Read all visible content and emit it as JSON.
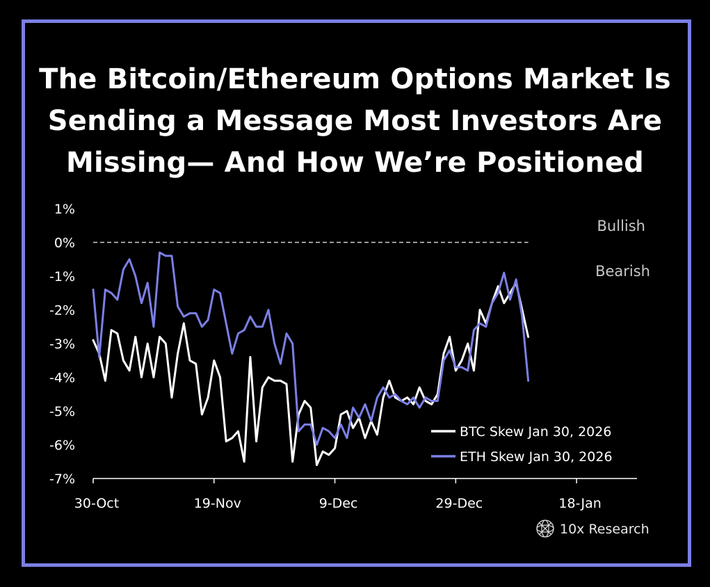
{
  "title": {
    "lines": [
      "The Bitcoin/Ethereum Options Market Is",
      "Sending a Message Most Investors Are",
      "Missing— And How We’re Positioned"
    ]
  },
  "colors": {
    "frame": "#7B7FE4",
    "btc": "#FFFFFF",
    "eth": "#7B7FE4",
    "background": "#000000"
  },
  "chart_data": {
    "type": "line",
    "title": "",
    "xlabel": "",
    "ylabel": "",
    "ylim": [
      -7,
      1
    ],
    "yticks": [
      1,
      0,
      -1,
      -2,
      -3,
      -4,
      -5,
      -6,
      -7
    ],
    "ytick_labels": [
      "1%",
      "0%",
      "-1%",
      "-2%",
      "-3%",
      "-4%",
      "-5%",
      "-6%",
      "-7%"
    ],
    "xlim": [
      0,
      90
    ],
    "xticks": [
      0,
      20,
      40,
      60,
      80
    ],
    "xtick_labels": [
      "30-Oct",
      "19-Nov",
      "9-Dec",
      "29-Dec",
      "18-Jan"
    ],
    "reference_line": {
      "y": 0,
      "style": "dashed",
      "x_end": 72
    },
    "zone_labels": {
      "above": "Bullish",
      "below": "Bearish"
    },
    "legend": "bottom-right",
    "series": [
      {
        "name": "BTC Skew Jan 30, 2026",
        "x": [
          0,
          1,
          2,
          3,
          4,
          5,
          6,
          7,
          8,
          9,
          10,
          11,
          12,
          13,
          14,
          15,
          16,
          17,
          18,
          19,
          20,
          21,
          22,
          23,
          24,
          25,
          26,
          27,
          28,
          29,
          30,
          31,
          32,
          33,
          34,
          35,
          36,
          37,
          38,
          39,
          40,
          41,
          42,
          43,
          44,
          45,
          46,
          47,
          48,
          49,
          50,
          51,
          52,
          53,
          54,
          55,
          56,
          57,
          58,
          59,
          60,
          61,
          62,
          63,
          64,
          65,
          66,
          67,
          68,
          69,
          70,
          71,
          72
        ],
        "values": [
          -2.9,
          -3.3,
          -4.1,
          -2.6,
          -2.7,
          -3.5,
          -3.8,
          -2.8,
          -4.0,
          -3.0,
          -4.0,
          -2.8,
          -3.0,
          -4.6,
          -3.3,
          -2.4,
          -3.5,
          -3.6,
          -5.1,
          -4.6,
          -3.5,
          -4.0,
          -5.9,
          -5.8,
          -5.6,
          -6.5,
          -3.4,
          -5.9,
          -4.3,
          -4.0,
          -4.1,
          -4.1,
          -4.2,
          -6.5,
          -5.1,
          -4.7,
          -4.9,
          -6.6,
          -6.2,
          -6.3,
          -6.1,
          -5.1,
          -5.0,
          -5.5,
          -5.2,
          -5.8,
          -5.3,
          -5.7,
          -4.6,
          -4.1,
          -4.6,
          -4.7,
          -4.6,
          -4.8,
          -4.3,
          -4.7,
          -4.8,
          -4.5,
          -3.3,
          -2.8,
          -3.8,
          -3.5,
          -3.0,
          -3.8,
          -2.0,
          -2.4,
          -1.8,
          -1.3,
          -1.8,
          -1.5,
          -1.2,
          -2.0,
          -2.8
        ]
      },
      {
        "name": "ETH Skew Jan 30, 2026",
        "x": [
          0,
          1,
          2,
          3,
          4,
          5,
          6,
          7,
          8,
          9,
          10,
          11,
          12,
          13,
          14,
          15,
          16,
          17,
          18,
          19,
          20,
          21,
          22,
          23,
          24,
          25,
          26,
          27,
          28,
          29,
          30,
          31,
          32,
          33,
          34,
          35,
          36,
          37,
          38,
          39,
          40,
          41,
          42,
          43,
          44,
          45,
          46,
          47,
          48,
          49,
          50,
          51,
          52,
          53,
          54,
          55,
          56,
          57,
          58,
          59,
          60,
          61,
          62,
          63,
          64,
          65,
          66,
          67,
          68,
          69,
          70,
          71,
          72
        ],
        "values": [
          -1.4,
          -3.4,
          -1.4,
          -1.5,
          -1.7,
          -0.8,
          -0.5,
          -1.0,
          -1.8,
          -1.2,
          -2.5,
          -0.3,
          -0.4,
          -0.4,
          -1.9,
          -2.2,
          -2.1,
          -2.1,
          -2.5,
          -2.3,
          -1.4,
          -1.5,
          -2.4,
          -3.3,
          -2.7,
          -2.6,
          -2.2,
          -2.5,
          -2.5,
          -2.0,
          -3.0,
          -3.6,
          -2.7,
          -3.0,
          -5.6,
          -5.4,
          -5.4,
          -6.0,
          -5.5,
          -5.6,
          -5.8,
          -5.4,
          -5.8,
          -4.9,
          -5.2,
          -4.8,
          -5.3,
          -4.6,
          -4.3,
          -4.6,
          -4.5,
          -4.7,
          -4.8,
          -4.6,
          -4.9,
          -4.6,
          -4.7,
          -4.7,
          -3.5,
          -3.2,
          -3.7,
          -3.7,
          -3.8,
          -2.6,
          -2.4,
          -2.5,
          -1.8,
          -1.5,
          -0.9,
          -1.7,
          -1.1,
          -2.2,
          -4.1
        ]
      }
    ]
  },
  "footer": {
    "brand": "10x Research"
  }
}
